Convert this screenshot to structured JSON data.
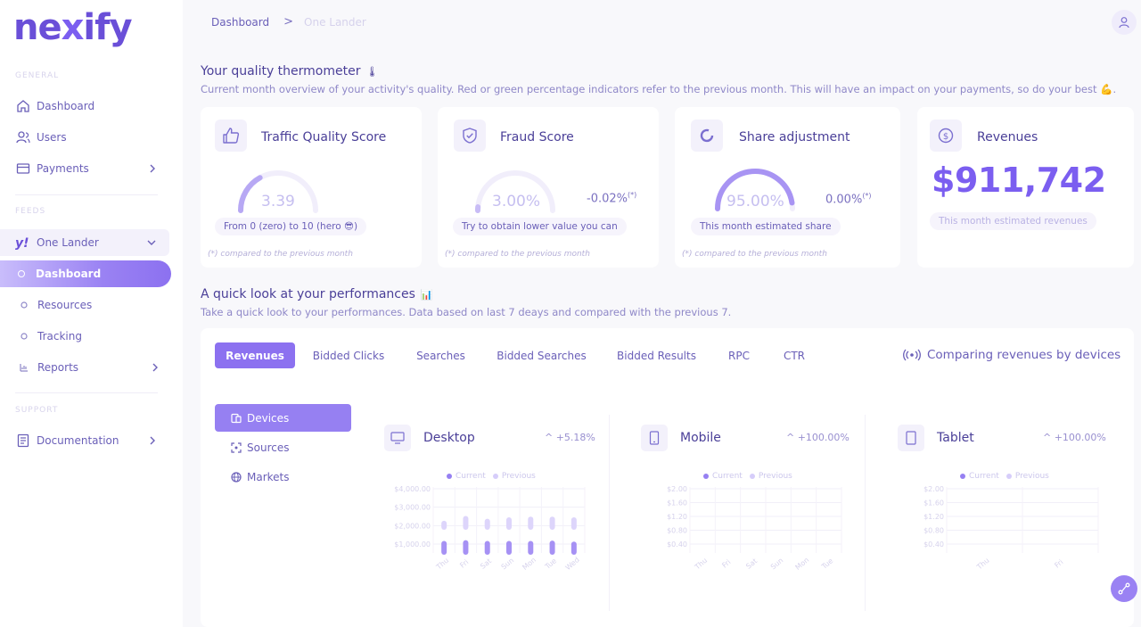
{
  "brand": {
    "logo_text_a": "ne",
    "logo_text_x": "x",
    "logo_text_b": "ify"
  },
  "sidebar": {
    "section_general": "GENERAL",
    "section_feeds": "FEEDS",
    "section_support": "SUPPORT",
    "items": [
      {
        "label": "Dashboard",
        "icon": "home-icon"
      },
      {
        "label": "Users",
        "icon": "users-icon"
      },
      {
        "label": "Payments",
        "icon": "card-icon"
      }
    ],
    "feed": {
      "label": "One Lander",
      "icon": "yahoo-icon"
    },
    "feed_items": [
      {
        "label": "Dashboard",
        "active": true
      },
      {
        "label": "Resources"
      },
      {
        "label": "Tracking"
      },
      {
        "label": "Reports"
      }
    ],
    "support_items": [
      {
        "label": "Documentation",
        "icon": "doc-icon"
      }
    ]
  },
  "breadcrumb": {
    "root": "Dashboard",
    "sep": ">",
    "current": "One Lander"
  },
  "quality": {
    "title": "Your quality thermometer",
    "emoji": "🌡",
    "subtitle": "Current month overview of your activity's quality. Red or green percentage indicators refer to the previous month. This will have an impact on your payments, so do your best 💪.",
    "cards": {
      "traffic": {
        "title": "Traffic Quality Score",
        "value": "3.39",
        "score": 3.39,
        "max": 10,
        "pill": "From 0 (zero) to 10 (hero 😎)",
        "note": "(*) compared to the previous month"
      },
      "fraud": {
        "title": "Fraud Score",
        "value": "3.00%",
        "percent": 3.0,
        "delta": "-0.02%",
        "delta_sup": "(*)",
        "pill": "Try to obtain lower value you can",
        "note": "(*) compared to the previous month"
      },
      "share": {
        "title": "Share adjustment",
        "value": "95.00%",
        "percent": 95.0,
        "delta": "0.00%",
        "delta_sup": "(*)",
        "pill": "This month estimated share",
        "note": "(*) compared to the previous month"
      },
      "revenues": {
        "title": "Revenues",
        "value": "$911,742",
        "pill": "This month estimated revenues"
      }
    }
  },
  "performance": {
    "title": "A quick look at your performances",
    "emoji": "📊",
    "subtitle": "Take a quick look to your performances. Data based on last 7 deays and compared with the previous 7.",
    "tabs": [
      "Revenues",
      "Bidded Clicks",
      "Searches",
      "Bidded Searches",
      "Bidded Results",
      "RPC",
      "CTR"
    ],
    "active_tab": "Revenues",
    "compare_label": "Comparing revenues by devices",
    "side_tabs": [
      "Devices",
      "Sources",
      "Markets"
    ],
    "devices": [
      {
        "name": "Desktop",
        "pct": "+5.18%"
      },
      {
        "name": "Mobile",
        "pct": "+100.00%"
      },
      {
        "name": "Tablet",
        "pct": "+100.00%"
      }
    ],
    "legend": {
      "current": "Current",
      "previous": "Previous"
    }
  },
  "chart_data": [
    {
      "type": "bar",
      "title": "",
      "series": [
        {
          "name": "Current",
          "values": [
            2000,
            2100,
            2000,
            2000,
            2000,
            2050,
            1900
          ]
        },
        {
          "name": "Previous",
          "values": [
            1300,
            2000,
            1600,
            1800,
            1900,
            1900,
            1800
          ]
        }
      ],
      "categories": [
        "Thu",
        "Fri",
        "Sat",
        "Sun",
        "Mon",
        "Tue",
        "Wed"
      ],
      "yticks": [
        "$4,000.00",
        "$3,000.00",
        "$2,000.00",
        "$1,000.00"
      ],
      "ylim": [
        0,
        4000
      ],
      "grid": true,
      "legend": "top"
    },
    {
      "type": "bar",
      "title": "",
      "series": [
        {
          "name": "Current",
          "values": [
            0,
            0,
            0,
            0,
            0,
            0
          ]
        },
        {
          "name": "Previous",
          "values": [
            0,
            0,
            0,
            0,
            0,
            0
          ]
        }
      ],
      "categories": [
        "Thu",
        "Fri",
        "Sat",
        "Sun",
        "Mon",
        "Tue"
      ],
      "yticks": [
        "$2.00",
        "$1.60",
        "$1.20",
        "$0.80",
        "$0.40"
      ],
      "ylim": [
        0,
        2
      ],
      "grid": true,
      "legend": "top"
    },
    {
      "type": "bar",
      "title": "",
      "series": [
        {
          "name": "Current",
          "values": [
            0,
            0
          ]
        },
        {
          "name": "Previous",
          "values": [
            0,
            0
          ]
        }
      ],
      "categories": [
        "Thu",
        "Fri"
      ],
      "yticks": [
        "$2.00",
        "$1.60",
        "$1.20",
        "$0.80",
        "$0.40"
      ],
      "ylim": [
        0,
        2
      ],
      "grid": true,
      "legend": "top"
    }
  ]
}
